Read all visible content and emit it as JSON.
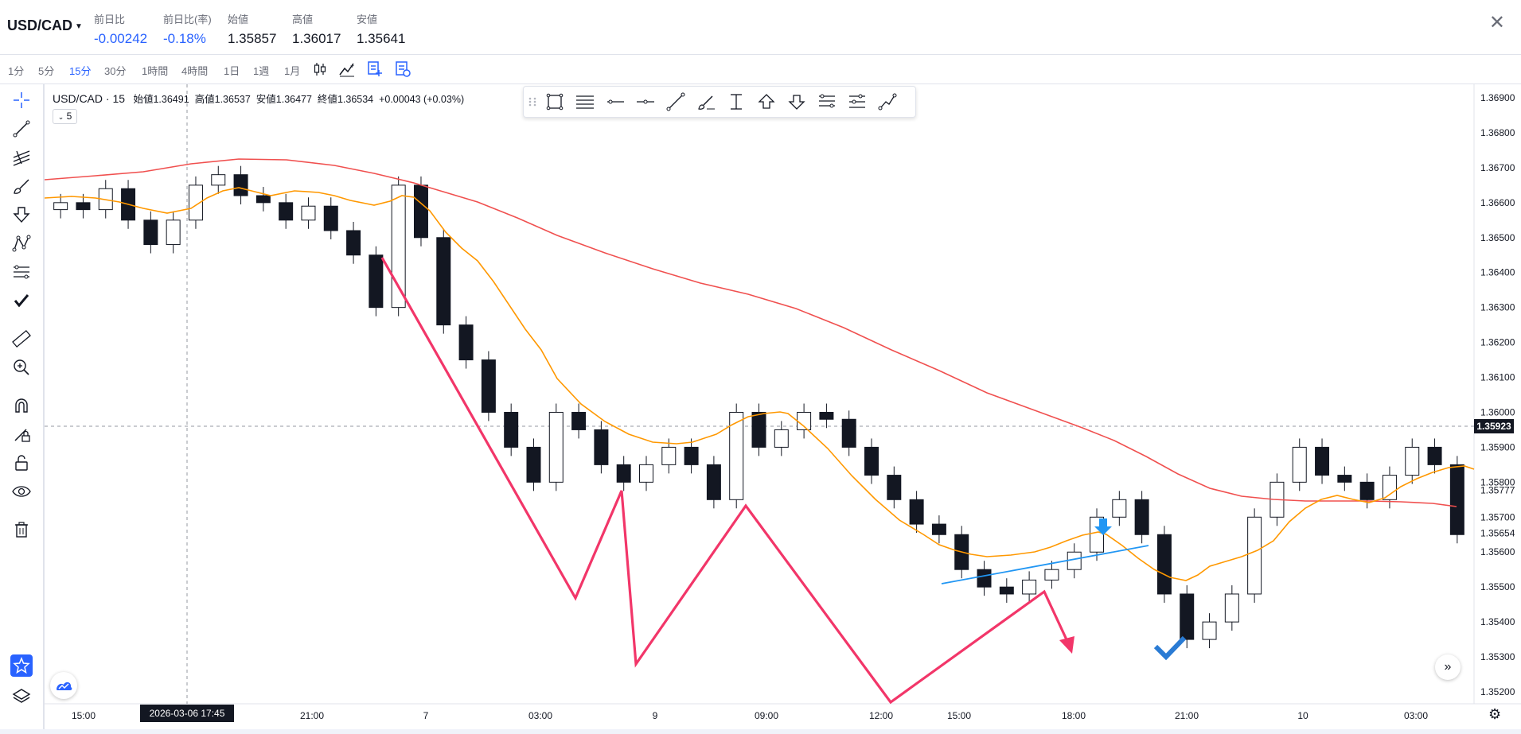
{
  "header": {
    "symbol": "USD/CAD",
    "stats": [
      {
        "label": "前日比",
        "value": "-0.00242",
        "color": "blue"
      },
      {
        "label": "前日比(率)",
        "value": "-0.18%",
        "color": "blue"
      },
      {
        "label": "始値",
        "value": "1.35857",
        "color": "dark"
      },
      {
        "label": "高値",
        "value": "1.36017",
        "color": "dark"
      },
      {
        "label": "安値",
        "value": "1.35641",
        "color": "dark"
      }
    ],
    "close_icon": "close-icon"
  },
  "timeframes": {
    "items": [
      {
        "label": "1分",
        "active": false
      },
      {
        "label": "5分",
        "active": false
      },
      {
        "label": "15分",
        "active": true
      },
      {
        "label": "30分",
        "active": false
      },
      {
        "label": "1時間",
        "active": false
      },
      {
        "label": "4時間",
        "active": false
      },
      {
        "label": "1日",
        "active": false
      },
      {
        "label": "1週",
        "active": false
      },
      {
        "label": "1月",
        "active": false
      }
    ],
    "icons": [
      "candles-icon",
      "indicators-icon",
      "compare-icon",
      "settings-save-icon"
    ]
  },
  "left_toolbar": [
    "crosshair-icon",
    "trendline-icon",
    "pitchfork-icon",
    "brush-icon",
    "arrow-down-icon",
    "pattern-icon",
    "fib-icon",
    "check-icon",
    "ruler-icon",
    "zoom-in-icon",
    "magnet-icon",
    "lock-draw-icon",
    "unlock-icon",
    "eye-icon",
    "trash-icon"
  ],
  "legend": {
    "symbol": "USD/CAD · 15",
    "open_label": "始値",
    "open": "1.36491",
    "high_label": "高値",
    "high": "1.36537",
    "low_label": "安値",
    "low": "1.36477",
    "close_label": "終値",
    "close": "1.36534",
    "change": "+0.00043 (+0.03%)",
    "indicator_badge": "5"
  },
  "drawing_toolbar": [
    "drag-handle-icon",
    "rectangle-icon",
    "parallel-channel-icon",
    "horizontal-ray-icon",
    "horizontal-line-icon",
    "trend-line-icon",
    "brush-icon",
    "vertical-range-icon",
    "arrow-up-icon",
    "arrow-down-icon",
    "fib-retracement-icon",
    "fib-extension-icon",
    "path-icon"
  ],
  "price_axis": {
    "labels": [
      "1.36900",
      "1.36800",
      "1.36700",
      "1.36600",
      "1.36500",
      "1.36400",
      "1.36300",
      "1.36200",
      "1.36100",
      "1.36000",
      "1.35900",
      "1.35800",
      "1.35700",
      "1.35600",
      "1.35500",
      "1.35400",
      "1.35300",
      "1.35200"
    ],
    "current_price": "1.35923",
    "extra_labels": [
      "1.35777",
      "1.35654"
    ]
  },
  "time_axis": {
    "labels": [
      "15:00",
      "21:00",
      "7",
      "03:00",
      "9",
      "09:00",
      "12:00",
      "15:00",
      "18:00",
      "21:00",
      "10",
      "03:00"
    ],
    "crosshair_date": "2026-03-06   17:45"
  },
  "colors": {
    "ma_fast": "#ff9800",
    "ma_slow": "#f0504f",
    "zigzag": "#f23669",
    "trendline": "#2196f3",
    "accent": "#2962ff"
  },
  "chart_data": {
    "type": "candlestick",
    "title": "USD/CAD · 15",
    "ylim": [
      1.3515,
      1.3695
    ],
    "x_label_positions_note": "",
    "close_series_approx": [
      1.366,
      1.3658,
      1.3664,
      1.3655,
      1.3648,
      1.3655,
      1.3665,
      1.3668,
      1.3662,
      1.366,
      1.3655,
      1.3659,
      1.3652,
      1.3645,
      1.363,
      1.3665,
      1.365,
      1.3625,
      1.3615,
      1.36,
      1.359,
      1.358,
      1.36,
      1.3595,
      1.3585,
      1.358,
      1.3585,
      1.359,
      1.3585,
      1.3575,
      1.36,
      1.359,
      1.3595,
      1.36,
      1.3598,
      1.359,
      1.3582,
      1.3575,
      1.3568,
      1.3565,
      1.3555,
      1.355,
      1.3548,
      1.3552,
      1.3555,
      1.356,
      1.357,
      1.3575,
      1.3565,
      1.3548,
      1.3535,
      1.354,
      1.3548,
      1.357,
      1.358,
      1.359,
      1.3582,
      1.358,
      1.3575,
      1.3582,
      1.359,
      1.3585,
      1.3565
    ]
  }
}
